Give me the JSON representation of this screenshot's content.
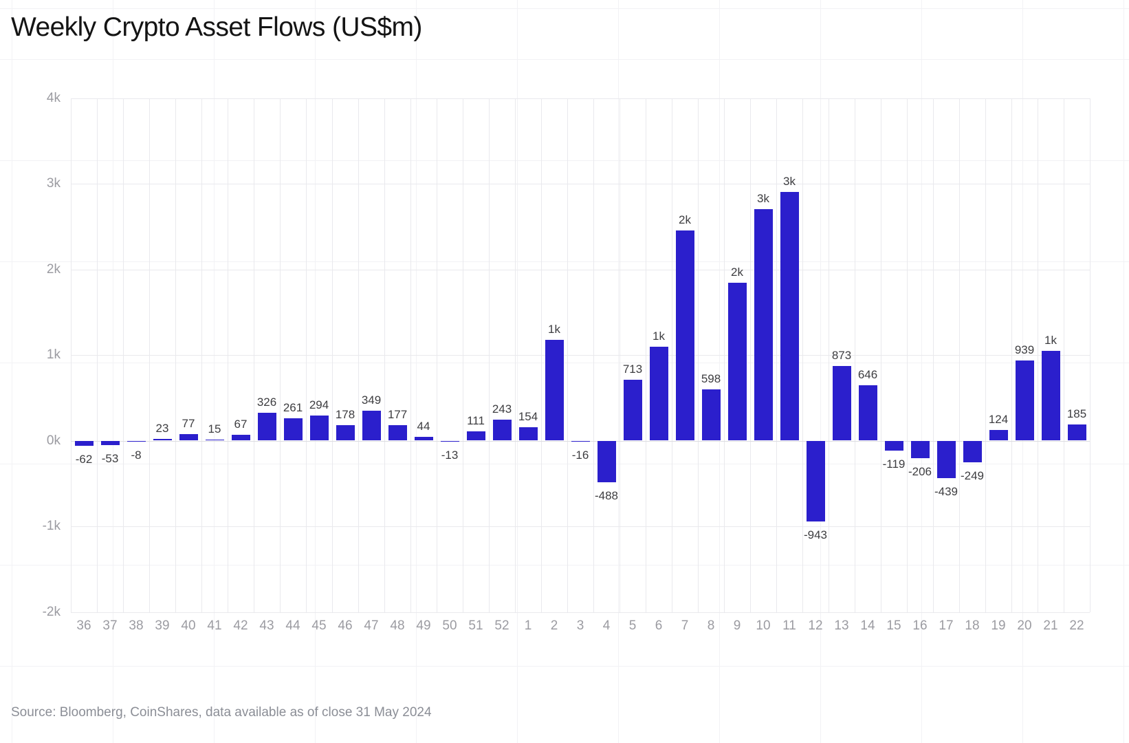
{
  "header": {
    "title": "Weekly Crypto Asset Flows (US$m)"
  },
  "footer": {
    "source": "Source: Bloomberg, CoinShares, data available as of close 31 May 2024"
  },
  "colors": {
    "bar": "#2b1fcc",
    "grid_line": "#e9e9ed",
    "zero_line": "#dddde2",
    "bg_grid_line": "#f2f2f5",
    "axis_label": "#9b9ba1",
    "value_label": "#3d3d40",
    "title": "#141414",
    "source": "#8b8e96"
  },
  "chart_data": {
    "type": "bar",
    "title": "Weekly Crypto Asset Flows (US$m)",
    "xlabel": "",
    "ylabel": "",
    "unit": "US$m (weekly flows, week number on x-axis)",
    "ylim": [
      -2000,
      4000
    ],
    "ytick_interval": 1000,
    "ytick_labels": [
      "4k",
      "3k",
      "2k",
      "1k",
      "0k",
      "-1k",
      "-2k"
    ],
    "grid": true,
    "legend_position": "none",
    "categories": [
      "36",
      "37",
      "38",
      "39",
      "40",
      "41",
      "42",
      "43",
      "44",
      "45",
      "46",
      "47",
      "48",
      "49",
      "50",
      "51",
      "52",
      "1",
      "2",
      "3",
      "4",
      "5",
      "6",
      "7",
      "8",
      "9",
      "10",
      "11",
      "12",
      "13",
      "14",
      "15",
      "16",
      "17",
      "18",
      "19",
      "20",
      "21",
      "22"
    ],
    "values": [
      -62,
      -53,
      -8,
      23,
      77,
      15,
      67,
      326,
      261,
      294,
      178,
      349,
      177,
      44,
      -13,
      111,
      243,
      154,
      1180,
      -16,
      -488,
      713,
      1100,
      2450,
      598,
      1840,
      2700,
      2900,
      -943,
      873,
      646,
      -119,
      -206,
      -439,
      -249,
      124,
      939,
      1050,
      185
    ],
    "bar_labels": [
      "-62",
      "-53",
      "-8",
      "23",
      "77",
      "15",
      "67",
      "326",
      "261",
      "294",
      "178",
      "349",
      "177",
      "44",
      "-13",
      "111",
      "243",
      "154",
      "1k",
      "-16",
      "-488",
      "713",
      "1k",
      "2k",
      "598",
      "2k",
      "3k",
      "3k",
      "-943",
      "873",
      "646",
      "-119",
      "-206",
      "-439",
      "-249",
      "124",
      "939",
      "1k",
      "185"
    ]
  }
}
